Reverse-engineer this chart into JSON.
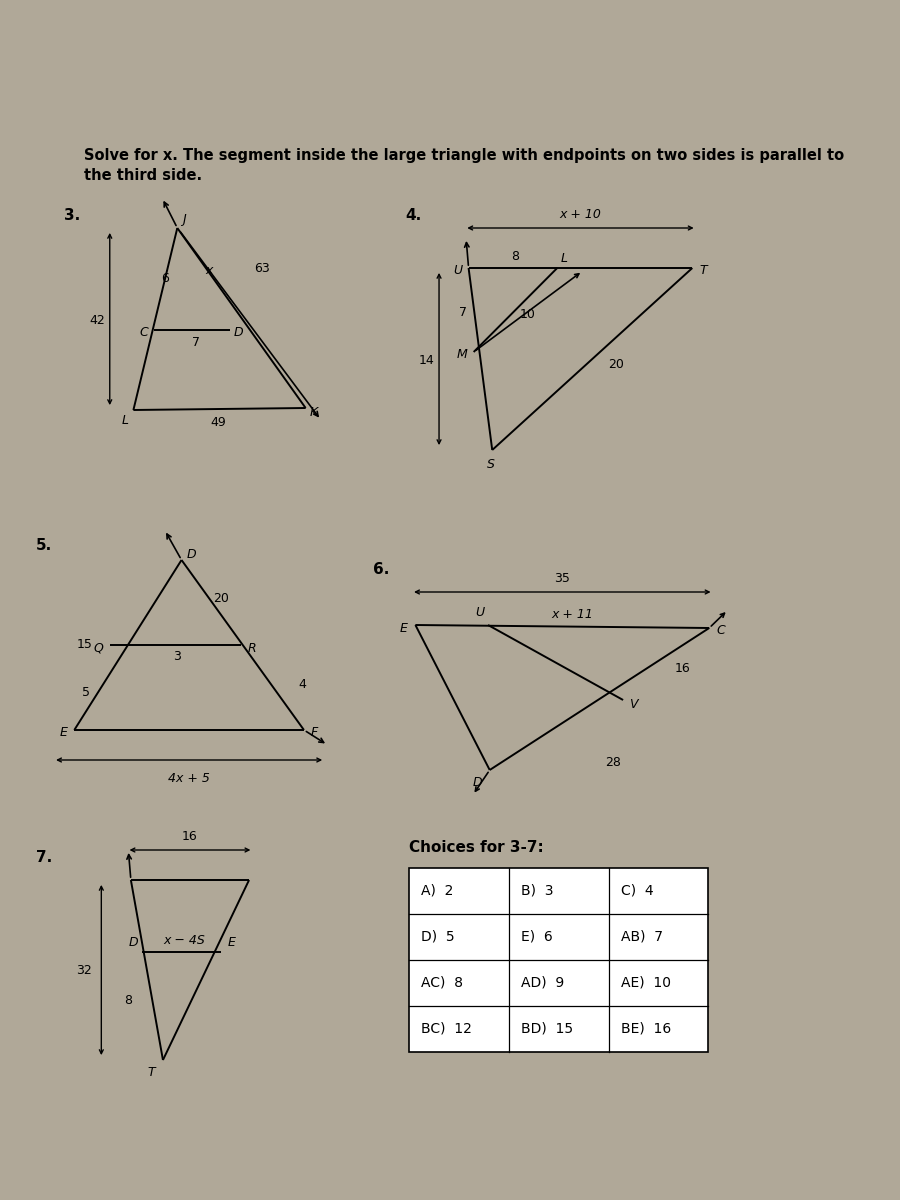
{
  "bg_color": "#b0a898",
  "title_line1": "Solve for x. The segment inside the large triangle with endpoints on two sides is parallel to",
  "title_line2": "the third side.",
  "title_fontsize": 10.5,
  "title_fontweight": "bold",
  "choices_title": "Choices for 3-7:",
  "choices": [
    [
      "A)  2",
      "B)  3",
      "C)  4"
    ],
    [
      "D)  5",
      "E)  6",
      "AB)  7"
    ],
    [
      "AC)  8",
      "AD)  9",
      "AE)  10"
    ],
    [
      "BC)  12",
      "BD)  15",
      "BE)  16"
    ]
  ]
}
